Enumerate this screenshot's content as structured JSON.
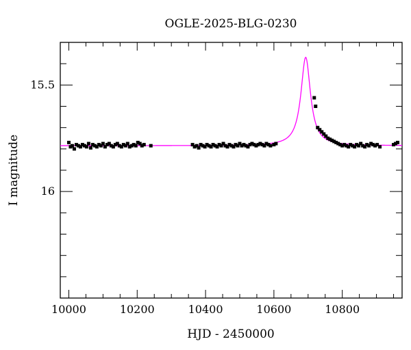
{
  "chart_data": {
    "type": "scatter",
    "title": "OGLE-2025-BLG-0230",
    "xlabel": "HJD - 2450000",
    "ylabel": "I magnitude",
    "xlim": [
      9975,
      10975
    ],
    "ylim": [
      16.5,
      15.3
    ],
    "y_inverted": true,
    "x_ticks": [
      10000,
      10200,
      10400,
      10600,
      10800
    ],
    "x_tick_labels": [
      "10000",
      "10200",
      "10400",
      "10600",
      "10800"
    ],
    "y_ticks": [
      15.5,
      16
    ],
    "y_tick_labels": [
      "15.5",
      "16"
    ],
    "grid": false,
    "colors": {
      "points": "#000000",
      "model": "#ff00ff"
    },
    "model": {
      "name": "",
      "baseline_mag": 15.785,
      "peak_mag": 15.37,
      "t0": 10693,
      "half_width": 17
    },
    "points": [
      {
        "x": 10000,
        "y": 15.77
      },
      {
        "x": 10005,
        "y": 15.79
      },
      {
        "x": 10010,
        "y": 15.785
      },
      {
        "x": 10016,
        "y": 15.8
      },
      {
        "x": 10022,
        "y": 15.78
      },
      {
        "x": 10028,
        "y": 15.785
      },
      {
        "x": 10034,
        "y": 15.79
      },
      {
        "x": 10040,
        "y": 15.78
      },
      {
        "x": 10046,
        "y": 15.785
      },
      {
        "x": 10052,
        "y": 15.79
      },
      {
        "x": 10058,
        "y": 15.775
      },
      {
        "x": 10064,
        "y": 15.795
      },
      {
        "x": 10070,
        "y": 15.78
      },
      {
        "x": 10076,
        "y": 15.785
      },
      {
        "x": 10082,
        "y": 15.79
      },
      {
        "x": 10088,
        "y": 15.78
      },
      {
        "x": 10094,
        "y": 15.785
      },
      {
        "x": 10100,
        "y": 15.775
      },
      {
        "x": 10106,
        "y": 15.79
      },
      {
        "x": 10112,
        "y": 15.78
      },
      {
        "x": 10118,
        "y": 15.775
      },
      {
        "x": 10124,
        "y": 15.785
      },
      {
        "x": 10130,
        "y": 15.79
      },
      {
        "x": 10136,
        "y": 15.78
      },
      {
        "x": 10142,
        "y": 15.775
      },
      {
        "x": 10148,
        "y": 15.785
      },
      {
        "x": 10154,
        "y": 15.79
      },
      {
        "x": 10160,
        "y": 15.78
      },
      {
        "x": 10166,
        "y": 15.785
      },
      {
        "x": 10172,
        "y": 15.775
      },
      {
        "x": 10178,
        "y": 15.79
      },
      {
        "x": 10184,
        "y": 15.785
      },
      {
        "x": 10190,
        "y": 15.78
      },
      {
        "x": 10196,
        "y": 15.785
      },
      {
        "x": 10202,
        "y": 15.77
      },
      {
        "x": 10208,
        "y": 15.775
      },
      {
        "x": 10214,
        "y": 15.785
      },
      {
        "x": 10220,
        "y": 15.78
      },
      {
        "x": 10240,
        "y": 15.785
      },
      {
        "x": 10362,
        "y": 15.78
      },
      {
        "x": 10368,
        "y": 15.79
      },
      {
        "x": 10374,
        "y": 15.785
      },
      {
        "x": 10380,
        "y": 15.795
      },
      {
        "x": 10386,
        "y": 15.78
      },
      {
        "x": 10392,
        "y": 15.785
      },
      {
        "x": 10398,
        "y": 15.79
      },
      {
        "x": 10404,
        "y": 15.78
      },
      {
        "x": 10410,
        "y": 15.785
      },
      {
        "x": 10416,
        "y": 15.79
      },
      {
        "x": 10422,
        "y": 15.78
      },
      {
        "x": 10428,
        "y": 15.785
      },
      {
        "x": 10434,
        "y": 15.79
      },
      {
        "x": 10440,
        "y": 15.78
      },
      {
        "x": 10446,
        "y": 15.785
      },
      {
        "x": 10452,
        "y": 15.775
      },
      {
        "x": 10458,
        "y": 15.785
      },
      {
        "x": 10464,
        "y": 15.79
      },
      {
        "x": 10470,
        "y": 15.78
      },
      {
        "x": 10476,
        "y": 15.785
      },
      {
        "x": 10482,
        "y": 15.79
      },
      {
        "x": 10488,
        "y": 15.78
      },
      {
        "x": 10494,
        "y": 15.785
      },
      {
        "x": 10500,
        "y": 15.775
      },
      {
        "x": 10506,
        "y": 15.785
      },
      {
        "x": 10512,
        "y": 15.78
      },
      {
        "x": 10518,
        "y": 15.785
      },
      {
        "x": 10524,
        "y": 15.79
      },
      {
        "x": 10530,
        "y": 15.78
      },
      {
        "x": 10536,
        "y": 15.775
      },
      {
        "x": 10542,
        "y": 15.78
      },
      {
        "x": 10548,
        "y": 15.785
      },
      {
        "x": 10554,
        "y": 15.78
      },
      {
        "x": 10560,
        "y": 15.775
      },
      {
        "x": 10566,
        "y": 15.78
      },
      {
        "x": 10572,
        "y": 15.785
      },
      {
        "x": 10578,
        "y": 15.775
      },
      {
        "x": 10584,
        "y": 15.78
      },
      {
        "x": 10590,
        "y": 15.785
      },
      {
        "x": 10600,
        "y": 15.78
      },
      {
        "x": 10606,
        "y": 15.775
      },
      {
        "x": 10718,
        "y": 15.56
      },
      {
        "x": 10722,
        "y": 15.6
      },
      {
        "x": 10728,
        "y": 15.7
      },
      {
        "x": 10734,
        "y": 15.71
      },
      {
        "x": 10740,
        "y": 15.72
      },
      {
        "x": 10746,
        "y": 15.73
      },
      {
        "x": 10752,
        "y": 15.74
      },
      {
        "x": 10758,
        "y": 15.75
      },
      {
        "x": 10764,
        "y": 15.755
      },
      {
        "x": 10770,
        "y": 15.76
      },
      {
        "x": 10776,
        "y": 15.765
      },
      {
        "x": 10782,
        "y": 15.77
      },
      {
        "x": 10788,
        "y": 15.775
      },
      {
        "x": 10794,
        "y": 15.78
      },
      {
        "x": 10800,
        "y": 15.785
      },
      {
        "x": 10806,
        "y": 15.78
      },
      {
        "x": 10812,
        "y": 15.785
      },
      {
        "x": 10818,
        "y": 15.79
      },
      {
        "x": 10824,
        "y": 15.78
      },
      {
        "x": 10830,
        "y": 15.785
      },
      {
        "x": 10836,
        "y": 15.79
      },
      {
        "x": 10842,
        "y": 15.78
      },
      {
        "x": 10848,
        "y": 15.785
      },
      {
        "x": 10854,
        "y": 15.775
      },
      {
        "x": 10860,
        "y": 15.785
      },
      {
        "x": 10866,
        "y": 15.79
      },
      {
        "x": 10872,
        "y": 15.78
      },
      {
        "x": 10878,
        "y": 15.785
      },
      {
        "x": 10884,
        "y": 15.775
      },
      {
        "x": 10890,
        "y": 15.78
      },
      {
        "x": 10896,
        "y": 15.785
      },
      {
        "x": 10902,
        "y": 15.78
      },
      {
        "x": 10910,
        "y": 15.79
      },
      {
        "x": 10950,
        "y": 15.78
      },
      {
        "x": 10956,
        "y": 15.775
      },
      {
        "x": 10962,
        "y": 15.77
      }
    ]
  }
}
